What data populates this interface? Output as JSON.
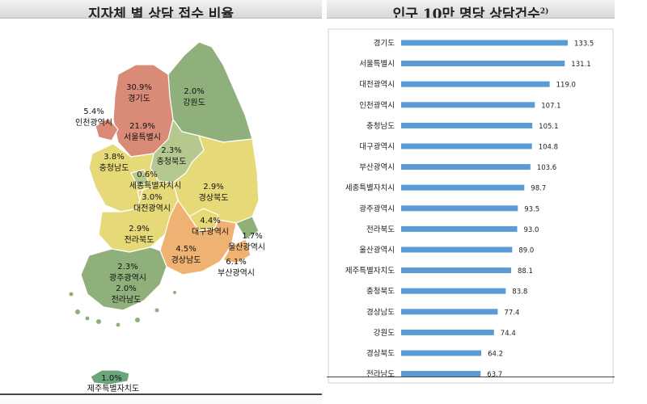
{
  "left_panel": {
    "title": "지자체 별 상담 접수 비율",
    "regions": [
      {
        "id": "gyeonggi",
        "pct": "30.9%",
        "name": "경기도"
      },
      {
        "id": "gangwon",
        "pct": "2.0%",
        "name": "강원도"
      },
      {
        "id": "incheon",
        "pct": "5.4%",
        "name": "인천광역시"
      },
      {
        "id": "seoul",
        "pct": "21.9%",
        "name": "서울특별시"
      },
      {
        "id": "chungbuk",
        "pct": "2.3%",
        "name": "충청북도"
      },
      {
        "id": "chungnam",
        "pct": "3.8%",
        "name": "충청남도"
      },
      {
        "id": "sejong",
        "pct": "0.6%",
        "name": "세종특별자치시"
      },
      {
        "id": "daejeon",
        "pct": "3.0%",
        "name": "대전광역시"
      },
      {
        "id": "gyeongbuk",
        "pct": "2.9%",
        "name": "경상북도"
      },
      {
        "id": "jeonbuk",
        "pct": "2.9%",
        "name": "전라북도"
      },
      {
        "id": "daegu",
        "pct": "4.4%",
        "name": "대구광역시"
      },
      {
        "id": "ulsan",
        "pct": "1.7%",
        "name": "울산광역시"
      },
      {
        "id": "gyeongnam",
        "pct": "4.5%",
        "name": "경상남도"
      },
      {
        "id": "busan",
        "pct": "6.1%",
        "name": "부산광역시"
      },
      {
        "id": "gwangju",
        "pct": "2.3%",
        "name": "광주광역시"
      },
      {
        "id": "jeonnam",
        "pct": "2.0%",
        "name": "전라남도"
      },
      {
        "id": "jeju",
        "pct": "1.0%",
        "name": "제주특별자치도"
      }
    ],
    "colors": {
      "high": "#d98b78",
      "mid_high": "#f0b273",
      "mid": "#e6da78",
      "low": "#b5c98e",
      "lowest": "#8fb07a"
    }
  },
  "right_panel": {
    "title": "인구 10만 명당 상담건수",
    "title_note": "2)"
  },
  "chart_data": {
    "type": "bar",
    "orientation": "horizontal",
    "title": "인구 10만 명당 상담건수",
    "categories": [
      "경기도",
      "서울특별시",
      "대전광역시",
      "인천광역시",
      "충청남도",
      "대구광역시",
      "부산광역시",
      "세종특별자치시",
      "광주광역시",
      "전라북도",
      "울산광역시",
      "제주특별자치도",
      "충청북도",
      "경상남도",
      "강원도",
      "경상북도",
      "전라남도"
    ],
    "values": [
      133.5,
      131.1,
      119.0,
      107.1,
      105.1,
      104.8,
      103.6,
      98.7,
      93.5,
      93.0,
      89.0,
      88.1,
      83.8,
      77.4,
      74.4,
      64.2,
      63.7
    ],
    "value_labels": [
      "133.5",
      "131.1",
      "119.0",
      "107.1",
      "105.1",
      "104.8",
      "103.6",
      "98.7",
      "93.5",
      "93.0",
      "89.0",
      "88.1",
      "83.8",
      "77.4",
      "74.4",
      "64.2",
      "63.7"
    ],
    "xlim": [
      0,
      133.5
    ],
    "bar_color": "#5b9bd5",
    "grid": false,
    "legend": "none"
  }
}
